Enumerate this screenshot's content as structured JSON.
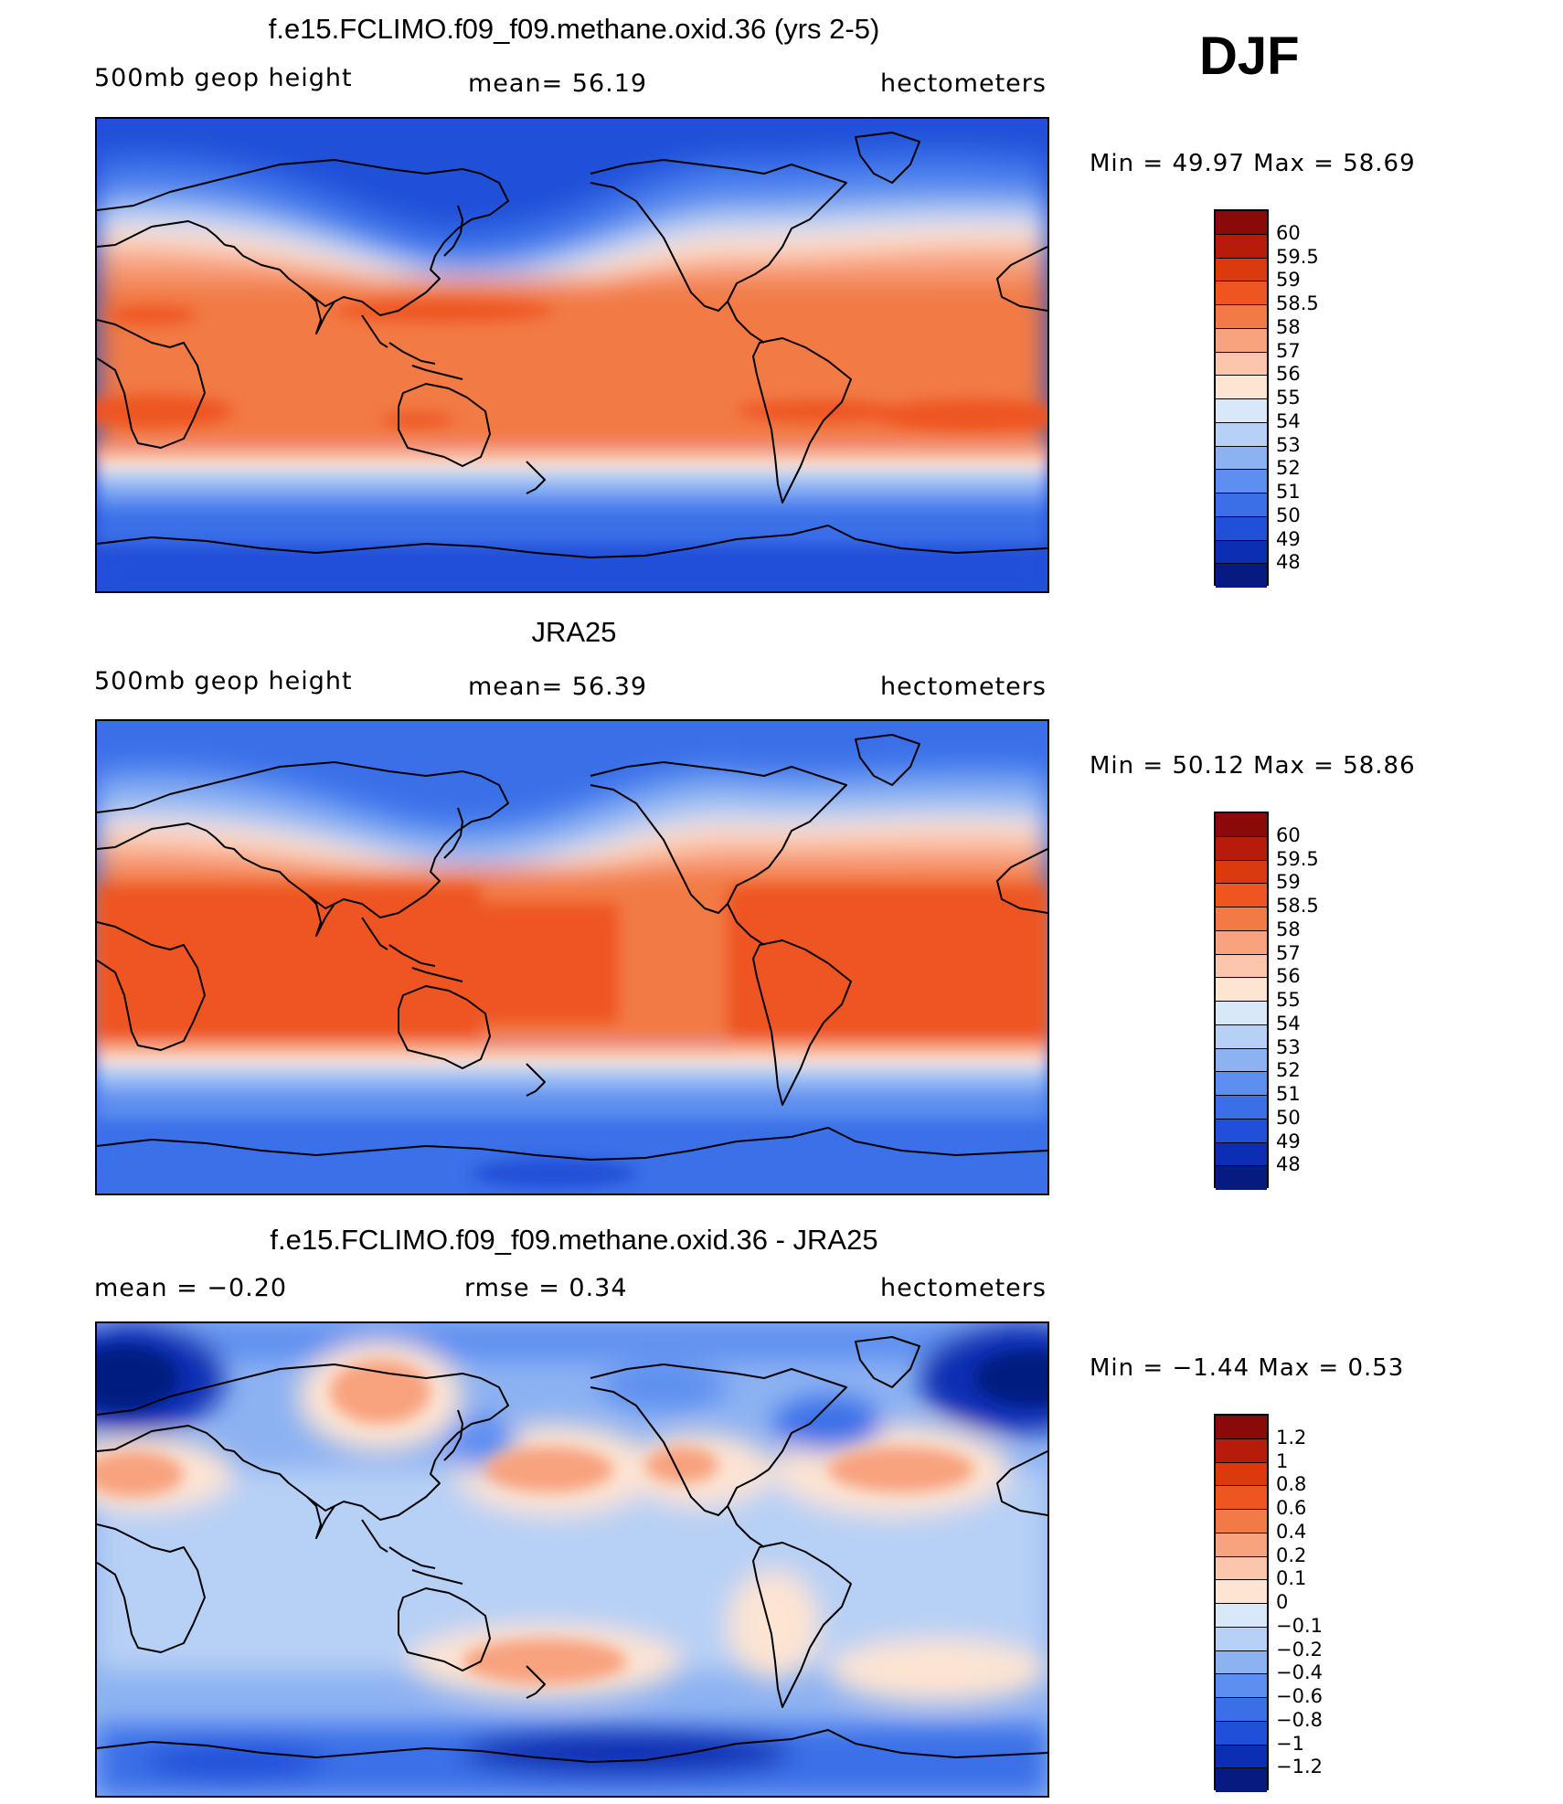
{
  "season": "DJF",
  "panels": [
    {
      "title": "f.e15.FCLIMO.f09_f09.methane.oxid.36 (yrs 2-5)",
      "left_label": "500mb  geop  height",
      "mid_label": "mean=   56.19",
      "units": "hectometers",
      "minmax": "Min  =    49.97  Max  =    58.69",
      "map_type": "field",
      "colorbar": {
        "labels": [
          "60",
          "59.5",
          "59",
          "58.5",
          "58",
          "57",
          "56",
          "55",
          "54",
          "53",
          "52",
          "51",
          "50",
          "49",
          "48"
        ],
        "colors": [
          "#8a0a0a",
          "#b71c0a",
          "#da3a0d",
          "#ee5520",
          "#f27a45",
          "#f8a27e",
          "#fbc6ab",
          "#fde4d3",
          "#d9e8f8",
          "#b7d0f5",
          "#8db2f2",
          "#5d8ff0",
          "#3a6fe8",
          "#2050d8",
          "#0b2eb3",
          "#061a80"
        ]
      }
    },
    {
      "title": "JRA25",
      "left_label": "500mb  geop  height",
      "mid_label": "mean=   56.39",
      "units": "hectometers",
      "minmax": "Min  =    50.12  Max  =    58.86",
      "map_type": "field",
      "colorbar": {
        "labels": [
          "60",
          "59.5",
          "59",
          "58.5",
          "58",
          "57",
          "56",
          "55",
          "54",
          "53",
          "52",
          "51",
          "50",
          "49",
          "48"
        ],
        "colors": [
          "#8a0a0a",
          "#b71c0a",
          "#da3a0d",
          "#ee5520",
          "#f27a45",
          "#f8a27e",
          "#fbc6ab",
          "#fde4d3",
          "#d9e8f8",
          "#b7d0f5",
          "#8db2f2",
          "#5d8ff0",
          "#3a6fe8",
          "#2050d8",
          "#0b2eb3",
          "#061a80"
        ]
      }
    },
    {
      "title": "f.e15.FCLIMO.f09_f09.methane.oxid.36 - JRA25",
      "left_label": "mean  =    −0.20",
      "mid_label": "rmse  =     0.34",
      "units": "hectometers",
      "minmax": "Min  =    −1.44  Max  =      0.53",
      "map_type": "diff",
      "colorbar": {
        "labels": [
          "1.2",
          "1",
          "0.8",
          "0.6",
          "0.4",
          "0.2",
          "0.1",
          "0",
          "−0.1",
          "−0.2",
          "−0.4",
          "−0.6",
          "−0.8",
          "−1",
          "−1.2"
        ],
        "colors": [
          "#8a0a0a",
          "#b71c0a",
          "#da3a0d",
          "#ee5520",
          "#f27a45",
          "#f8a27e",
          "#fbc6ab",
          "#fde4d3",
          "#d9e8f8",
          "#b7d0f5",
          "#8db2f2",
          "#5d8ff0",
          "#3a6fe8",
          "#2050d8",
          "#0b2eb3",
          "#061a80"
        ]
      }
    }
  ]
}
